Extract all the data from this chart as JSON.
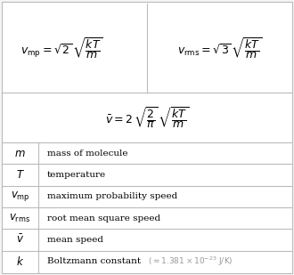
{
  "background_color": "#f5f5f5",
  "border_color": "#bbbbbb",
  "text_color": "#000000",
  "gray_text_color": "#999999",
  "formula_row1_left": "$v_{\\mathrm{mp}} = \\sqrt{2} \\, \\sqrt{\\dfrac{kT}{m}}$",
  "formula_row1_right": "$v_{\\mathrm{rms}} = \\sqrt{3} \\, \\sqrt{\\dfrac{kT}{m}}$",
  "formula_row2": "$\\bar{v} = 2 \\, \\sqrt{\\dfrac{2}{\\pi}} \\, \\sqrt{\\dfrac{kT}{m}}$",
  "table_rows": [
    {
      "symbol": "$m$",
      "description": "mass of molecule",
      "extra": ""
    },
    {
      "symbol": "$T$",
      "description": "temperature",
      "extra": ""
    },
    {
      "symbol": "$v_{\\mathrm{mp}}$",
      "description": "maximum probability speed",
      "extra": ""
    },
    {
      "symbol": "$v_{\\mathrm{rms}}$",
      "description": "root mean square speed",
      "extra": ""
    },
    {
      "symbol": "$\\bar{v}$",
      "description": "mean speed",
      "extra": ""
    },
    {
      "symbol": "$k$",
      "description": "Boltzmann constant",
      "extra": "($\\approx 1.381 \\times 10^{-23}$ J/K)"
    }
  ],
  "figsize": [
    3.3,
    3.09
  ],
  "dpi": 100
}
